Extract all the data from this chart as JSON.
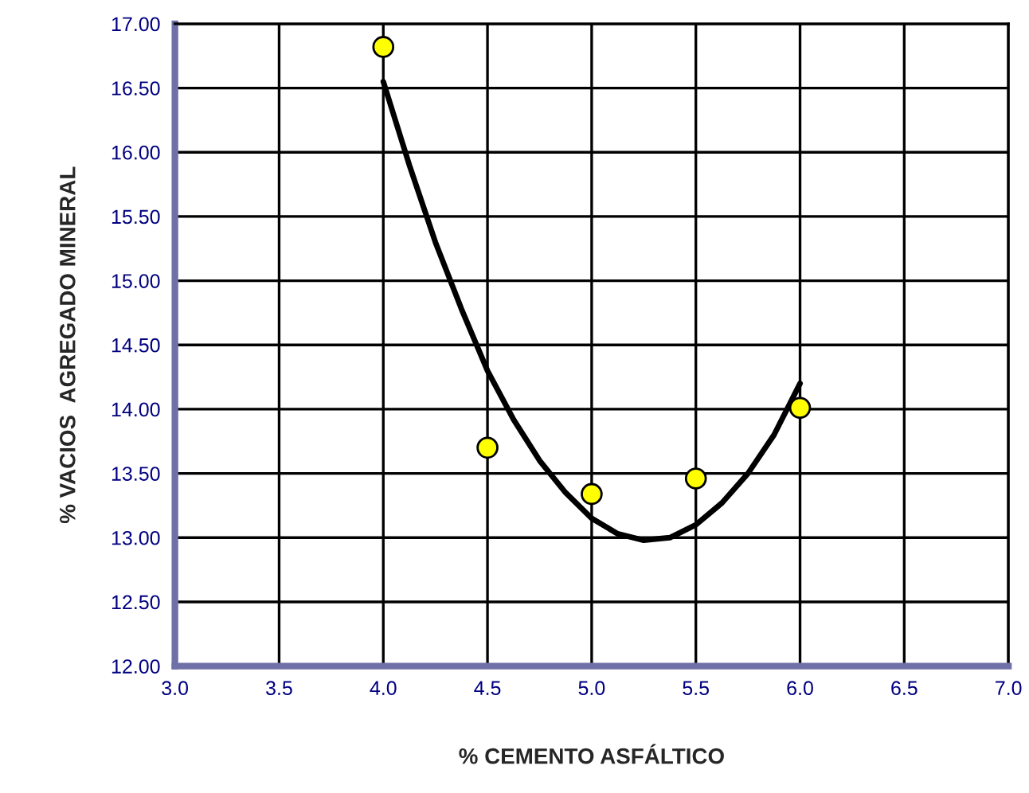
{
  "chart_data": {
    "type": "scatter",
    "xlabel": "% CEMENTO ASFÁLTICO",
    "ylabel": "% VACIOS  AGREGADO MINERAL",
    "xlim": [
      3.0,
      7.0
    ],
    "xticks": [
      {
        "value": 3.0,
        "label": "3.0"
      },
      {
        "value": 3.5,
        "label": "3.5"
      },
      {
        "value": 4.0,
        "label": "4.0"
      },
      {
        "value": 4.5,
        "label": "4.5"
      },
      {
        "value": 5.0,
        "label": "5.0"
      },
      {
        "value": 5.5,
        "label": "5.5"
      },
      {
        "value": 6.0,
        "label": "6.0"
      },
      {
        "value": 6.5,
        "label": "6.5"
      },
      {
        "value": 7.0,
        "label": "7.0"
      }
    ],
    "ylim": [
      12.0,
      17.0
    ],
    "yticks": [
      {
        "value": 12.0,
        "label": "12.00"
      },
      {
        "value": 12.5,
        "label": "12.50"
      },
      {
        "value": 13.0,
        "label": "13.00"
      },
      {
        "value": 13.5,
        "label": "13.50"
      },
      {
        "value": 14.0,
        "label": "14.00"
      },
      {
        "value": 14.5,
        "label": "14.50"
      },
      {
        "value": 15.0,
        "label": "15.00"
      },
      {
        "value": 15.5,
        "label": "15.50"
      },
      {
        "value": 16.0,
        "label": "16.00"
      },
      {
        "value": 16.5,
        "label": "16.50"
      },
      {
        "value": 17.0,
        "label": "17.00"
      }
    ],
    "grid": true,
    "legend": false,
    "series": [
      {
        "type": "line",
        "color": "#000000",
        "marker": "none",
        "line_style": "solid",
        "x": [
          4.0,
          4.125,
          4.25,
          4.375,
          4.5,
          4.625,
          4.75,
          4.875,
          5.0,
          5.125,
          5.25,
          5.375,
          5.5,
          5.625,
          5.75,
          5.875,
          6.0
        ],
        "values": [
          16.55,
          15.9,
          15.3,
          14.78,
          14.3,
          13.92,
          13.6,
          13.35,
          13.15,
          13.03,
          12.98,
          13.0,
          13.1,
          13.27,
          13.5,
          13.8,
          14.2
        ]
      },
      {
        "color": "#ffff00",
        "marker": "circle",
        "x": [
          4.0,
          4.5,
          5.0,
          5.5,
          6.0
        ],
        "values": [
          16.82,
          13.7,
          13.34,
          13.46,
          14.01
        ]
      }
    ]
  }
}
